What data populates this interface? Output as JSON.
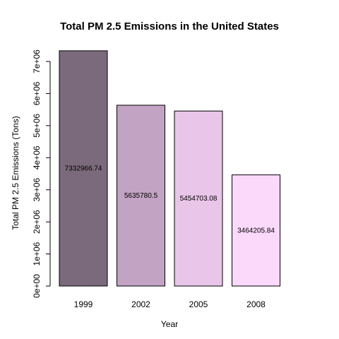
{
  "chart_data": {
    "type": "bar",
    "title": "Total PM 2.5 Emissions in the United States",
    "xlabel": "Year",
    "ylabel": "Total PM 2.5 Emissions (Tons)",
    "categories": [
      "1999",
      "2002",
      "2005",
      "2008"
    ],
    "values": [
      7332966.74,
      5635780.5,
      5454703.08,
      3464205.84
    ],
    "data_labels": [
      "7332966.74",
      "5635780.5",
      "5454703.08",
      "3464205.84"
    ],
    "bar_colors": [
      "#7b6a7b",
      "#c3a3c3",
      "#e9c5e9",
      "#fbd9fb"
    ],
    "ylim": [
      0,
      7000000
    ],
    "yticks": [
      0,
      1000000,
      2000000,
      3000000,
      4000000,
      5000000,
      6000000,
      7000000
    ],
    "ytick_labels": [
      "0e+00",
      "1e+06",
      "2e+06",
      "3e+06",
      "4e+06",
      "5e+06",
      "6e+06",
      "7e+06"
    ],
    "grid": false,
    "legend": false
  }
}
